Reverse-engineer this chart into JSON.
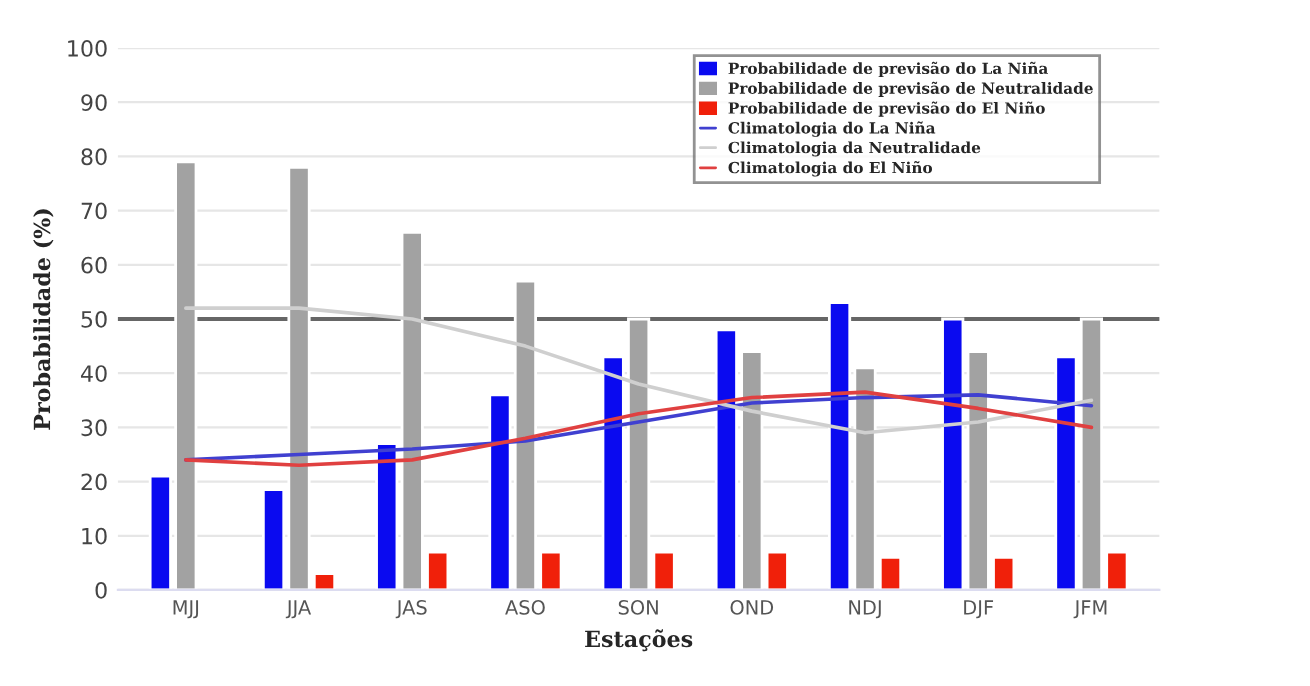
{
  "chart_data": {
    "type": "bar",
    "xlabel": "Estações",
    "ylabel": "Probabilidade (%)",
    "categories": [
      "MJJ",
      "JJA",
      "JAS",
      "ASO",
      "SON",
      "OND",
      "NDJ",
      "DJF",
      "JFM"
    ],
    "series": [
      {
        "name": "Probabilidade de previsão do La Niña",
        "color": "#0a0af0",
        "values": [
          21,
          18.5,
          27,
          36,
          43,
          48,
          53,
          50,
          43
        ]
      },
      {
        "name": "Probabilidade de previsão de Neutralidade",
        "color": "#a2a2a2",
        "values": [
          79,
          78,
          66,
          57,
          50,
          44,
          41,
          44,
          50
        ]
      },
      {
        "name": "Probabilidade de previsão do El Niño",
        "color": "#f0200a",
        "values": [
          null,
          3,
          7,
          7,
          7,
          7,
          6,
          6,
          7
        ]
      },
      {
        "name": "Climatologia do La Niña",
        "type": "line",
        "color": "#4040d0",
        "values": [
          24,
          25,
          26,
          27.5,
          31,
          34.5,
          35.5,
          36,
          34
        ]
      },
      {
        "name": "Climatologia da Neutralidade",
        "type": "line",
        "color": "#cfcfcf",
        "values": [
          52,
          52,
          50,
          45,
          38,
          33,
          29,
          31,
          35
        ]
      },
      {
        "name": "Climatologia do El Niño",
        "type": "line",
        "color": "#e04040",
        "values": [
          24,
          23,
          24,
          28,
          32.5,
          35.5,
          36.5,
          33.5,
          30
        ]
      }
    ],
    "ylim": [
      0,
      100
    ],
    "yticks": [
      0,
      10,
      20,
      30,
      40,
      50,
      60,
      70,
      80,
      90,
      100
    ],
    "ref_lines": [
      {
        "axis": "y",
        "value": 50,
        "color": "#666666"
      }
    ],
    "grid": "y",
    "legend": "top right"
  }
}
